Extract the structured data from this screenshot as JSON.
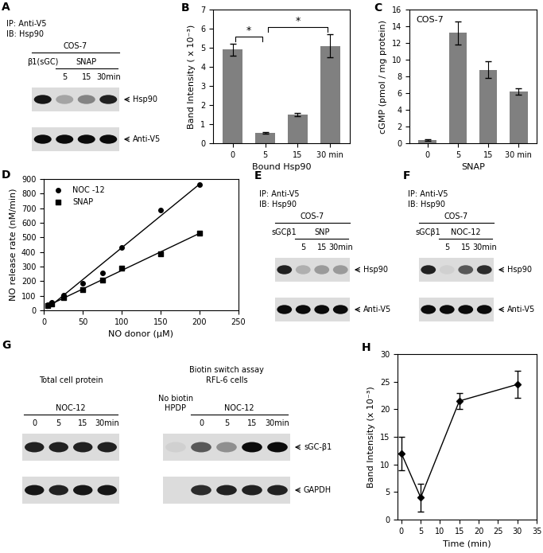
{
  "chart_data": [
    {
      "panel_label": "B",
      "type": "bar",
      "categories": [
        "0",
        "5",
        "15",
        "30 min"
      ],
      "values": [
        4.9,
        0.55,
        1.5,
        5.1
      ],
      "errors": [
        0.3,
        0.05,
        0.1,
        0.6
      ],
      "color": "#808080",
      "x_label": "Bound Hsp90",
      "y_label": "Band Intensity ( x 10⁻³)",
      "ylim": [
        0,
        7
      ],
      "yticks": [
        0,
        1,
        2,
        3,
        4,
        5,
        6,
        7
      ],
      "significance": [
        {
          "from": "0",
          "to": "5",
          "label": "*"
        },
        {
          "from": "5",
          "to": "30 min",
          "label": "*"
        }
      ]
    },
    {
      "panel_label": "C",
      "type": "bar",
      "categories": [
        "0",
        "5",
        "15",
        "30 min"
      ],
      "values": [
        0.4,
        13.2,
        8.8,
        6.2
      ],
      "errors": [
        0.1,
        1.4,
        1.0,
        0.4
      ],
      "color": "#808080",
      "annotation": "COS-7",
      "x_label": "SNAP",
      "y_label": "cGMP (pmol / mg protein)",
      "ylim": [
        0,
        16
      ],
      "yticks": [
        0,
        2,
        4,
        6,
        8,
        10,
        12,
        14,
        16
      ]
    },
    {
      "panel_label": "D",
      "type": "scatter",
      "x_label": "NO donor (μM)",
      "y_label": "NO release rate (nM/min)",
      "xlim": [
        0,
        250
      ],
      "xticks": [
        0,
        50,
        100,
        150,
        200,
        250
      ],
      "ylim": [
        0,
        900
      ],
      "yticks": [
        0,
        100,
        200,
        300,
        400,
        500,
        600,
        700,
        800,
        900
      ],
      "legend": "upper left",
      "series": [
        {
          "name": "NOC -12",
          "color": "#000000",
          "marker": "circle",
          "x": [
            5,
            10,
            25,
            50,
            75,
            100,
            150,
            200
          ],
          "values": [
            40,
            55,
            105,
            185,
            255,
            430,
            690,
            860
          ]
        },
        {
          "name": "SNAP",
          "color": "#000000",
          "marker": "square",
          "x": [
            5,
            10,
            25,
            50,
            75,
            100,
            150,
            200
          ],
          "values": [
            30,
            45,
            85,
            140,
            205,
            290,
            390,
            530
          ]
        }
      ]
    },
    {
      "panel_label": "H",
      "type": "line",
      "x": [
        0,
        5,
        15,
        30
      ],
      "values": [
        12,
        4,
        21.5,
        24.5
      ],
      "errors": [
        3,
        2.5,
        1.5,
        2.5
      ],
      "color": "#000000",
      "marker": "diamond",
      "x_label": "Time (min)",
      "y_label": "Band Intensity (x 10⁻³)",
      "xlim": [
        -1,
        35
      ],
      "xticks": [
        0,
        5,
        10,
        15,
        20,
        25,
        30,
        35
      ],
      "ylim": [
        0,
        30
      ],
      "yticks": [
        0,
        5,
        10,
        15,
        20,
        25,
        30
      ]
    }
  ],
  "blots": [
    {
      "panel_label": "A",
      "header": [
        "IP: Anti-V5",
        "IB: Hsp90"
      ],
      "gels": [
        {
          "cell_line": "COS-7",
          "lanes": [
            "β1(sGC)",
            "5",
            "15",
            "30min"
          ],
          "groups": [
            {
              "label": "SNAP",
              "lanes": [
                "5",
                "15",
                "30min"
              ]
            }
          ],
          "rows": [
            {
              "label": "Hsp90",
              "bands": [
                0.9,
                0.25,
                0.4,
                0.85
              ]
            },
            {
              "label": "Anti-V5",
              "bands": [
                0.95,
                0.95,
                0.95,
                0.95
              ]
            }
          ]
        }
      ]
    },
    {
      "panel_label": "E",
      "header": [
        "IP: Anti-V5",
        "IB: Hsp90"
      ],
      "gels": [
        {
          "cell_line": "COS-7",
          "lanes": [
            "sGCβ1",
            "5",
            "15",
            "30min"
          ],
          "groups": [
            {
              "label": "SNP",
              "lanes": [
                "5",
                "15",
                "30min"
              ]
            }
          ],
          "rows": [
            {
              "label": "Hsp90",
              "bands": [
                0.85,
                0.2,
                0.3,
                0.3
              ]
            },
            {
              "label": "Anti-V5",
              "bands": [
                0.95,
                0.95,
                0.95,
                0.95
              ]
            }
          ]
        }
      ]
    },
    {
      "panel_label": "F",
      "header": [
        "IP: Anti-V5",
        "IB: Hsp90"
      ],
      "gels": [
        {
          "cell_line": "COS-7",
          "lanes": [
            "sGCβ1",
            "5",
            "15",
            "30min"
          ],
          "groups": [
            {
              "label": "NOC-12",
              "lanes": [
                "5",
                "15",
                "30min"
              ]
            }
          ],
          "rows": [
            {
              "label": "Hsp90",
              "bands": [
                0.85,
                0.05,
                0.6,
                0.8
              ]
            },
            {
              "label": "Anti-V5",
              "bands": [
                0.95,
                0.95,
                0.95,
                0.95
              ]
            }
          ]
        }
      ]
    },
    {
      "panel_label": "G",
      "gels": [
        {
          "header": [
            "Total cell protein"
          ],
          "lanes": [
            "0",
            "5",
            "15",
            "30min"
          ],
          "groups": [
            {
              "label": "NOC-12",
              "lanes": [
                "0",
                "5",
                "15",
                "30min"
              ]
            }
          ],
          "rows": [
            {
              "bands": [
                0.85,
                0.85,
                0.85,
                0.85
              ]
            },
            {
              "bands": [
                0.9,
                0.85,
                0.9,
                0.9
              ]
            }
          ]
        },
        {
          "header": [
            "Biotin switch assay",
            "RFL-6 cells"
          ],
          "lanes": [
            "No biotin\nHPDP",
            "0",
            "5",
            "15",
            "30min"
          ],
          "groups": [
            {
              "label": "NOC-12",
              "lanes": [
                "0",
                "5",
                "15",
                "30min"
              ]
            }
          ],
          "rows": [
            {
              "label": "sGC-β1",
              "bands": [
                0.05,
                0.6,
                0.35,
                0.95,
                0.95
              ]
            },
            {
              "label": "GAPDH",
              "bands": [
                0.0,
                0.8,
                0.85,
                0.85,
                0.85
              ]
            }
          ]
        }
      ]
    }
  ]
}
